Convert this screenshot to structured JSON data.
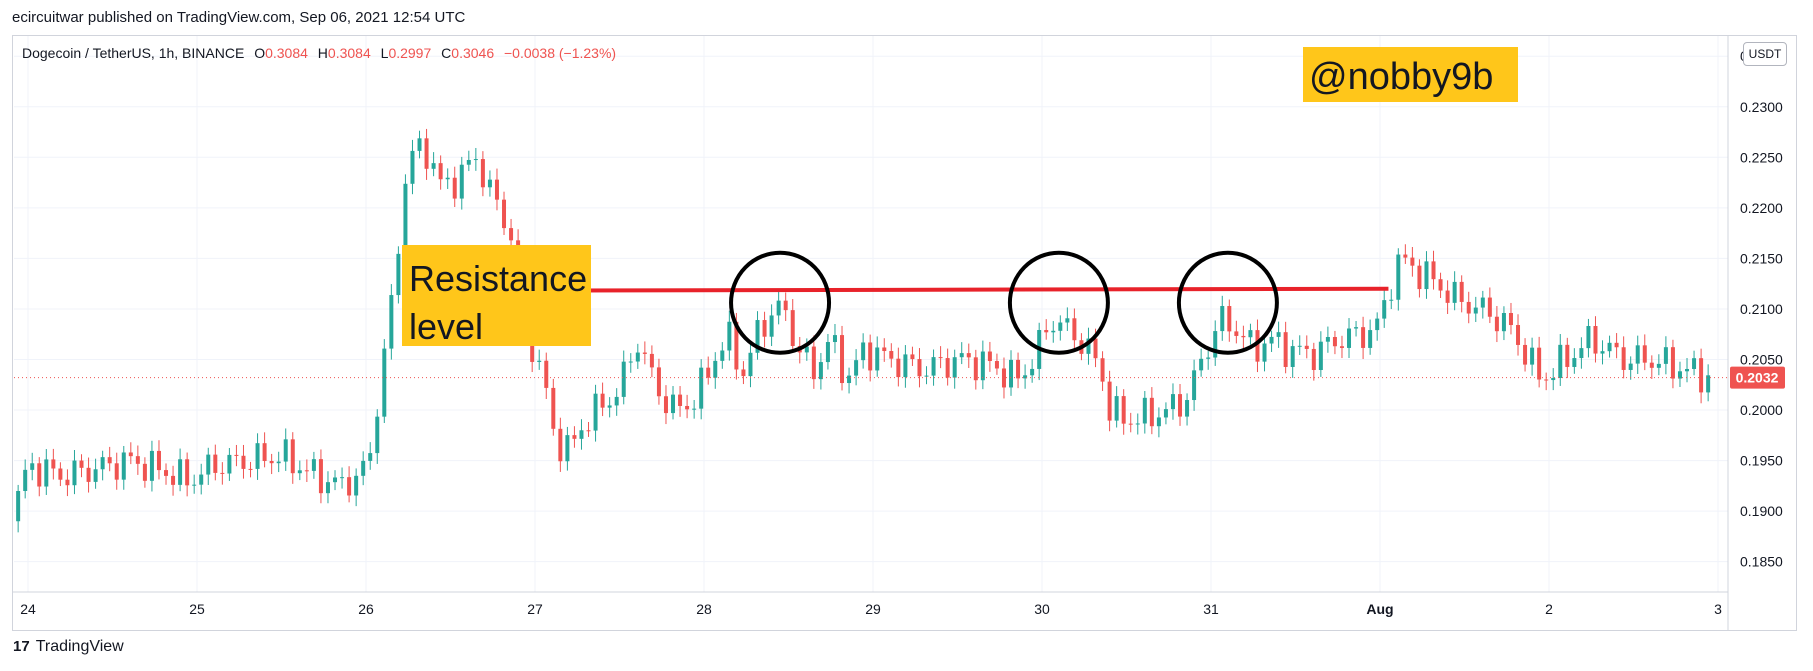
{
  "publisher_line": "ecircuitwar published on TradingView.com, Sep 06, 2021 12:54 UTC",
  "legend": {
    "symbol": "Dogecoin / TetherUS, 1h, BINANCE",
    "open_label": "O",
    "open": "0.3084",
    "high_label": "H",
    "high": "0.3084",
    "low_label": "L",
    "low": "0.2997",
    "close_label": "C",
    "close": "0.3046",
    "change": "−0.0038 (−1.23%)"
  },
  "currency_badge": "USDT",
  "watermark": "@nobby9b",
  "annotation": {
    "line1": "Resistance",
    "line2": "level"
  },
  "footer": {
    "logo": "17",
    "brand": "TradingView"
  },
  "colors": {
    "up": "#26a69a",
    "down": "#ef5350",
    "resistance": "#e8222a",
    "annotation_bg": "#ffc61a",
    "price_badge": "#ef5350"
  },
  "chart_data": {
    "type": "candlestick",
    "y_ticks": [
      "0.2350",
      "0.2300",
      "0.2250",
      "0.2200",
      "0.2150",
      "0.2100",
      "0.2050",
      "0.2000",
      "0.1950",
      "0.1900",
      "0.1850"
    ],
    "ylim": [
      0.182,
      0.237
    ],
    "x_ticks": [
      "24",
      "25",
      "26",
      "27",
      "28",
      "29",
      "30",
      "31",
      "Aug",
      "2",
      "3"
    ],
    "bold_x_ticks": [
      "Aug"
    ],
    "current_price": "0.2032",
    "resistance_level": 0.2118,
    "resistance_start_day": 26.55,
    "resistance_end_day": 32.05,
    "circled_days": [
      28.45,
      30.1,
      31.1
    ],
    "close_path": [
      [
        23.9,
        0.189
      ],
      [
        24.0,
        0.1945
      ],
      [
        24.2,
        0.1935
      ],
      [
        24.4,
        0.1942
      ],
      [
        24.6,
        0.195
      ],
      [
        24.8,
        0.194
      ],
      [
        24.95,
        0.193
      ],
      [
        25.1,
        0.1945
      ],
      [
        25.3,
        0.195
      ],
      [
        25.5,
        0.1955
      ],
      [
        25.7,
        0.1935
      ],
      [
        25.85,
        0.1925
      ],
      [
        26.0,
        0.194
      ],
      [
        26.05,
        0.198
      ],
      [
        26.1,
        0.205
      ],
      [
        26.15,
        0.21
      ],
      [
        26.2,
        0.218
      ],
      [
        26.25,
        0.225
      ],
      [
        26.35,
        0.226
      ],
      [
        26.45,
        0.222
      ],
      [
        26.55,
        0.223
      ],
      [
        26.65,
        0.225
      ],
      [
        26.75,
        0.221
      ],
      [
        26.85,
        0.218
      ],
      [
        26.95,
        0.208
      ],
      [
        27.05,
        0.203
      ],
      [
        27.12,
        0.197
      ],
      [
        27.2,
        0.196
      ],
      [
        27.3,
        0.199
      ],
      [
        27.5,
        0.202
      ],
      [
        27.6,
        0.207
      ],
      [
        27.7,
        0.203
      ],
      [
        27.8,
        0.2
      ],
      [
        27.95,
        0.201
      ],
      [
        28.05,
        0.205
      ],
      [
        28.15,
        0.207
      ],
      [
        28.25,
        0.203
      ],
      [
        28.3,
        0.2075
      ],
      [
        28.4,
        0.2095
      ],
      [
        28.48,
        0.21
      ],
      [
        28.55,
        0.206
      ],
      [
        28.65,
        0.204
      ],
      [
        28.75,
        0.207
      ],
      [
        28.85,
        0.203
      ],
      [
        28.95,
        0.206
      ],
      [
        29.1,
        0.205
      ],
      [
        29.3,
        0.204
      ],
      [
        29.5,
        0.205
      ],
      [
        29.7,
        0.2045
      ],
      [
        29.85,
        0.203
      ],
      [
        29.95,
        0.205
      ],
      [
        30.05,
        0.209
      ],
      [
        30.15,
        0.208
      ],
      [
        30.25,
        0.2065
      ],
      [
        30.35,
        0.204
      ],
      [
        30.4,
        0.2
      ],
      [
        30.5,
        0.199
      ],
      [
        30.65,
        0.1995
      ],
      [
        30.75,
        0.2
      ],
      [
        30.85,
        0.201
      ],
      [
        30.95,
        0.205
      ],
      [
        31.05,
        0.209
      ],
      [
        31.15,
        0.208
      ],
      [
        31.25,
        0.206
      ],
      [
        31.35,
        0.207
      ],
      [
        31.45,
        0.206
      ],
      [
        31.6,
        0.2055
      ],
      [
        31.75,
        0.207
      ],
      [
        31.9,
        0.2075
      ],
      [
        32.0,
        0.2085
      ],
      [
        32.05,
        0.212
      ],
      [
        32.12,
        0.215
      ],
      [
        32.2,
        0.214
      ],
      [
        32.3,
        0.213
      ],
      [
        32.45,
        0.211
      ],
      [
        32.6,
        0.21
      ],
      [
        32.75,
        0.2085
      ],
      [
        32.85,
        0.206
      ],
      [
        32.95,
        0.203
      ],
      [
        33.1,
        0.205
      ],
      [
        33.25,
        0.207
      ],
      [
        33.45,
        0.205
      ],
      [
        33.6,
        0.205
      ],
      [
        33.8,
        0.204
      ],
      [
        33.95,
        0.2032
      ]
    ]
  }
}
